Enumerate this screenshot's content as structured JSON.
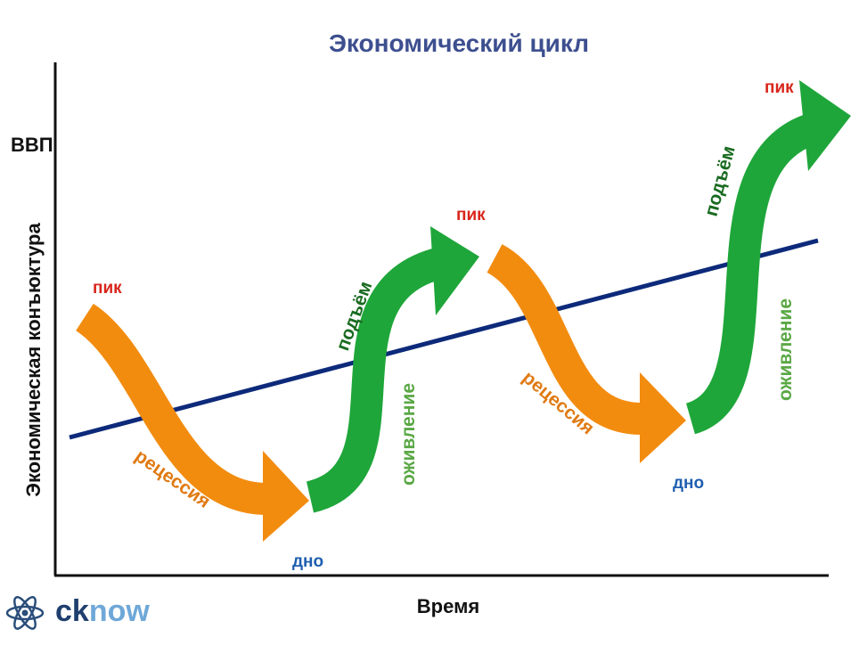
{
  "title": "Экономический цикл",
  "axes": {
    "y_top_label": "ВВП",
    "y_label": "Экономическая конъюктура",
    "x_label": "Время"
  },
  "phases": {
    "peak_1": "пик",
    "recession_1": "рецессия",
    "trough_1": "дно",
    "revival_1": "оживление",
    "rise_1": "подъём",
    "peak_2": "пик",
    "recession_2": "рецессия",
    "trough_2": "дно",
    "revival_2": "оживление",
    "rise_2": "подъём",
    "peak_3": "пик"
  },
  "logo": {
    "part1": "ck",
    "part2": "now"
  },
  "colors": {
    "recession": "#f28c0f",
    "rise": "#1fa63a",
    "trend": "#0d2a7a",
    "title": "#3d4f8f",
    "peak": "#d9261c",
    "trough": "#1f5fb0"
  },
  "icons": {
    "logo": "atom-icon"
  }
}
